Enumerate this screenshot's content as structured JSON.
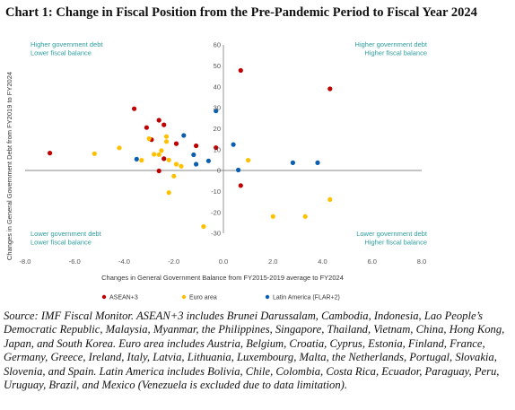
{
  "title": "Chart 1: Change in Fiscal Position from the Pre-Pandemic Period to Fiscal Year 2024",
  "source": "Source: IMF Fiscal Monitor. ASEAN+3 includes Brunei Darussalam, Cambodia, Indonesia, Lao People’s Democratic Republic, Malaysia, Myanmar, the Philippines, Singapore, Thailand, Vietnam, China, Hong Kong, Japan, and South Korea. Euro area includes Austria, Belgium, Croatia, Cyprus, Estonia, Finland, France, Germany, Greece, Ireland, Italy, Latvia, Lithuania, Luxembourg, Malta, the Netherlands, Portugal, Slovakia, Slovenia, and Spain. Latin America includes Bolivia, Chile, Colombia, Costa Rica, Ecuador, Paraguay, Peru, Uruguay, Brazil, and Mexico (Venezuela is excluded due to data limitation).",
  "quadrants": {
    "top_left": [
      "Higher government debt",
      "Lower fiscal balance"
    ],
    "top_right": [
      "Higher government debt",
      "Higher fiscal balance"
    ],
    "bottom_left": [
      "Lower government debt",
      "Lower fiscal balance"
    ],
    "bottom_right": [
      "Lower government debt",
      "Higher fiscal balance"
    ]
  },
  "colors": {
    "asean": "#c00000",
    "euro": "#ffc000",
    "latam": "#0b5fae",
    "quadrant_text": "#2e9e9e"
  },
  "chart_data": {
    "type": "scatter",
    "xlabel": "Changes in General Government Balance from FY2015-2019 average to FY2024",
    "ylabel": "Changes in General Government Debt from FY2019 to FY2024",
    "xlim": [
      -8,
      8
    ],
    "ylim": [
      -30,
      60
    ],
    "xticks": [
      -8,
      -6,
      -4,
      -2,
      0,
      2,
      4,
      6,
      8
    ],
    "yticks": [
      -30,
      -20,
      -10,
      0,
      10,
      20,
      30,
      40,
      50,
      60
    ],
    "xtick_labels": [
      "-8.0",
      "-6.0",
      "-4.0",
      "-2.0",
      "0.0",
      "2.0",
      "4.0",
      "6.0",
      "8.0"
    ],
    "ytick_labels": [
      "-30",
      "-20",
      "-10",
      "0",
      "10",
      "20",
      "30",
      "40",
      "50",
      "60"
    ],
    "legend_position": "bottom",
    "series": [
      {
        "name": "ASEAN+3",
        "points": [
          [
            -7.0,
            8.3
          ],
          [
            -3.6,
            29.5
          ],
          [
            -3.1,
            20.5
          ],
          [
            -2.9,
            14.7
          ],
          [
            -2.6,
            24.0
          ],
          [
            -2.4,
            21.8
          ],
          [
            -2.4,
            5.6
          ],
          [
            -2.6,
            -0.2
          ],
          [
            -1.9,
            12.8
          ],
          [
            -0.3,
            10.9
          ],
          [
            -1.1,
            11.8
          ],
          [
            0.7,
            47.8
          ],
          [
            4.3,
            39.0
          ],
          [
            0.7,
            -7.2
          ]
        ]
      },
      {
        "name": "Euro area",
        "points": [
          [
            -5.2,
            8.0
          ],
          [
            -4.2,
            10.8
          ],
          [
            -3.3,
            4.9
          ],
          [
            -3.0,
            15.2
          ],
          [
            -2.8,
            7.7
          ],
          [
            -2.6,
            7.6
          ],
          [
            -2.3,
            13.8
          ],
          [
            -2.3,
            16.2
          ],
          [
            -2.5,
            9.5
          ],
          [
            -2.2,
            5.0
          ],
          [
            -1.9,
            3.0
          ],
          [
            -1.7,
            2.0
          ],
          [
            -2.0,
            -2.7
          ],
          [
            -2.2,
            -10.6
          ],
          [
            -0.8,
            -26.8
          ],
          [
            1.0,
            4.9
          ],
          [
            2.0,
            -22.0
          ],
          [
            3.3,
            -22.0
          ],
          [
            4.3,
            -13.9
          ]
        ]
      },
      {
        "name": "Latin America (FLAR+2)",
        "points": [
          [
            -3.5,
            5.4
          ],
          [
            -1.6,
            16.7
          ],
          [
            -1.2,
            7.5
          ],
          [
            -1.1,
            3.0
          ],
          [
            -0.6,
            4.6
          ],
          [
            -0.3,
            28.4
          ],
          [
            0.4,
            12.4
          ],
          [
            0.6,
            0.2
          ],
          [
            2.8,
            3.7
          ],
          [
            3.8,
            3.7
          ]
        ]
      }
    ]
  }
}
